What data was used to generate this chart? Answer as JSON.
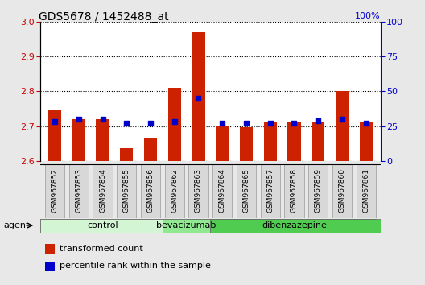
{
  "title": "GDS5678 / 1452488_at",
  "samples": [
    "GSM967852",
    "GSM967853",
    "GSM967854",
    "GSM967855",
    "GSM967856",
    "GSM967862",
    "GSM967863",
    "GSM967864",
    "GSM967865",
    "GSM967857",
    "GSM967858",
    "GSM967859",
    "GSM967860",
    "GSM967861"
  ],
  "transformed_count": [
    2.745,
    2.72,
    2.72,
    2.638,
    2.668,
    2.81,
    2.97,
    2.7,
    2.698,
    2.712,
    2.71,
    2.71,
    2.8,
    2.71
  ],
  "percentile_rank": [
    28,
    30,
    30,
    27,
    27,
    28,
    45,
    27,
    27,
    27,
    27,
    29,
    30,
    27
  ],
  "groups": [
    {
      "label": "control",
      "start": 0,
      "end": 5,
      "color": "#d4f5d4"
    },
    {
      "label": "bevacizumab",
      "start": 5,
      "end": 7,
      "color": "#90e890"
    },
    {
      "label": "dibenzazepine",
      "start": 7,
      "end": 14,
      "color": "#50cc50"
    }
  ],
  "ylim_left": [
    2.6,
    3.0
  ],
  "ylim_right": [
    0,
    100
  ],
  "yticks_left": [
    2.6,
    2.7,
    2.8,
    2.9,
    3.0
  ],
  "yticks_right": [
    0,
    25,
    50,
    75,
    100
  ],
  "bar_color": "#cc2200",
  "dot_color": "#0000cc",
  "background_color": "#e8e8e8",
  "xtick_bg": "#d8d8d8",
  "plot_bg": "#ffffff",
  "left_label_color": "#cc0000",
  "right_label_color": "#0000cc",
  "legend_items": [
    "transformed count",
    "percentile rank within the sample"
  ],
  "agent_label": "agent"
}
